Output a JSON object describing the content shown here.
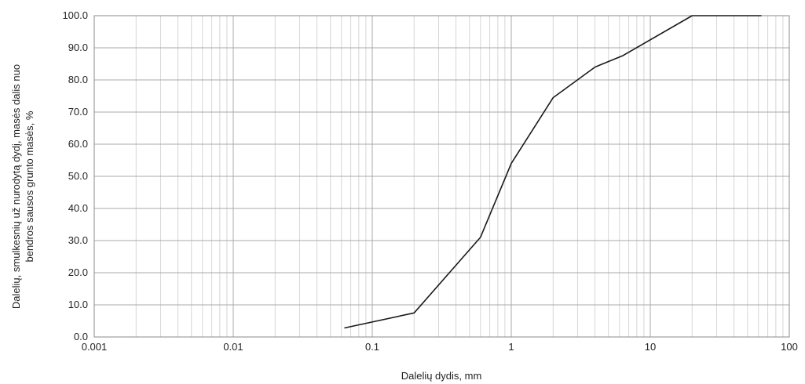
{
  "chart_data": {
    "type": "line",
    "x_scale": "log",
    "xlim": [
      0.001,
      100
    ],
    "ylim": [
      0,
      100
    ],
    "xlabel": "Dalelių dydis, mm",
    "ylabel_line1": "Dalelių, smulkesnių už nurodytą dydį, masės dalis nuo",
    "ylabel_line2": "bendros sausos grunto masės, %",
    "x_ticks": [
      {
        "value": 0.001,
        "label": "0.001"
      },
      {
        "value": 0.01,
        "label": "0.01"
      },
      {
        "value": 0.1,
        "label": "0.1"
      },
      {
        "value": 1,
        "label": "1"
      },
      {
        "value": 10,
        "label": "10"
      },
      {
        "value": 100,
        "label": "100"
      }
    ],
    "y_ticks": [
      {
        "value": 0,
        "label": "0.0"
      },
      {
        "value": 10,
        "label": "10.0"
      },
      {
        "value": 20,
        "label": "20.0"
      },
      {
        "value": 30,
        "label": "30.0"
      },
      {
        "value": 40,
        "label": "40.0"
      },
      {
        "value": 50,
        "label": "50.0"
      },
      {
        "value": 60,
        "label": "60.0"
      },
      {
        "value": 70,
        "label": "70.0"
      },
      {
        "value": 80,
        "label": "80.0"
      },
      {
        "value": 90,
        "label": "90.0"
      },
      {
        "value": 100,
        "label": "100.0"
      }
    ],
    "grid": true,
    "series": [
      {
        "x": [
          0.063,
          0.2,
          0.6,
          1,
          2,
          4,
          6.3,
          20,
          63
        ],
        "y": [
          2.8,
          7.5,
          31,
          54,
          74.5,
          84,
          87.5,
          100,
          100
        ]
      }
    ]
  }
}
